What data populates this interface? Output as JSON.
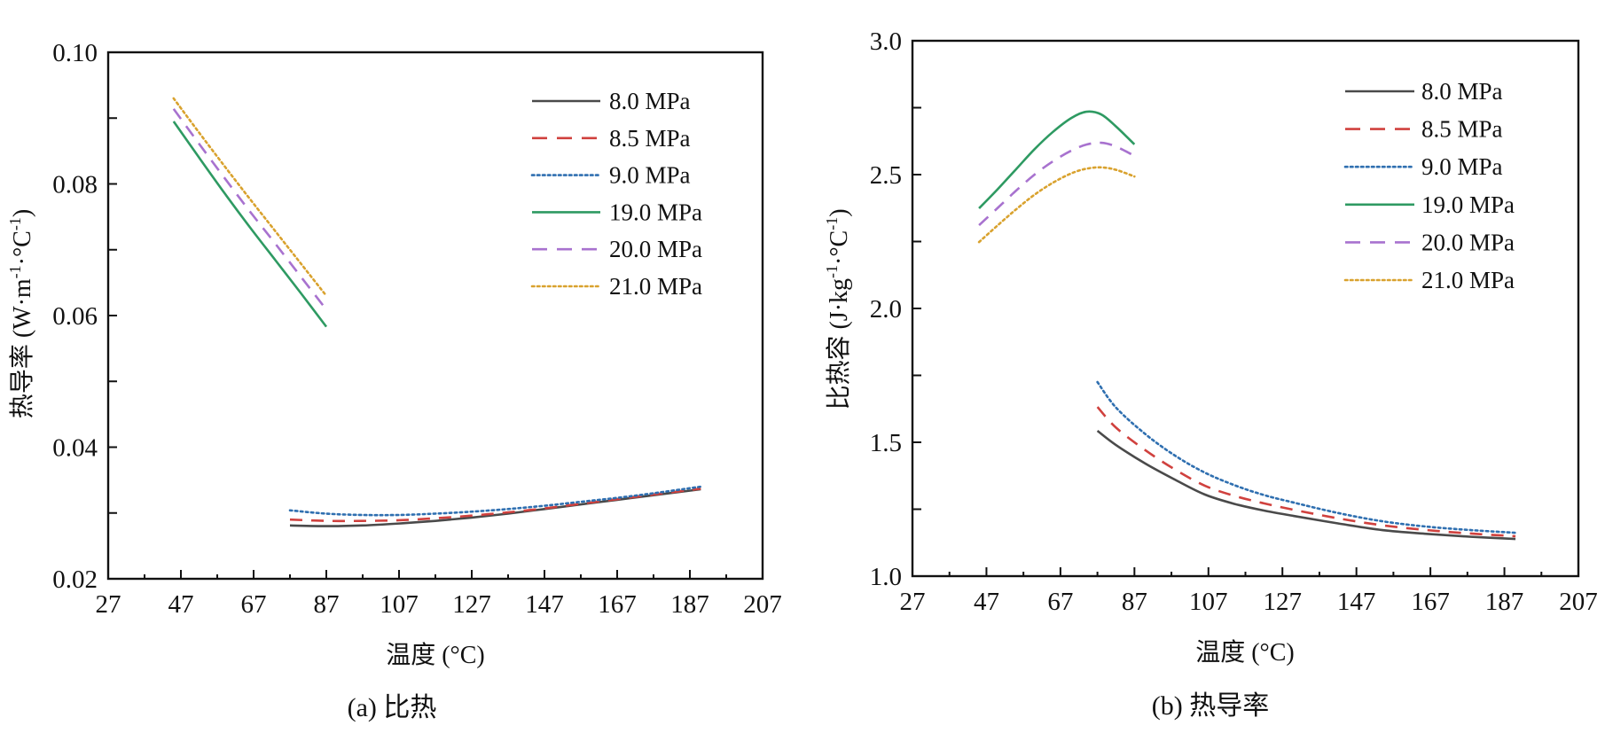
{
  "chart_data": [
    {
      "type": "line",
      "panel": "a",
      "caption": "(a) 比热",
      "xlabel": "温度 (°C)",
      "ylabel_main": "热导率 (W·m",
      "ylabel_parts": [
        "热导率 (W·m",
        "-1",
        "·°C",
        "-1",
        ")"
      ],
      "xlim": [
        27,
        207
      ],
      "ylim": [
        0.02,
        0.1
      ],
      "xticks": [
        27,
        47,
        67,
        87,
        107,
        127,
        147,
        167,
        187,
        207
      ],
      "xtick_labels": [
        "27",
        "47",
        "67",
        "87",
        "107",
        "127",
        "147",
        "167",
        "187",
        "207"
      ],
      "yticks": [
        0.02,
        0.04,
        0.06,
        0.08,
        0.1
      ],
      "ytick_labels": [
        "0.02",
        "0.04",
        "0.06",
        "0.08",
        "0.10"
      ],
      "grid": false,
      "legend_position": "top-right",
      "series": [
        {
          "name": "8.0 MPa",
          "color": "#4a4a4a",
          "style": "solid",
          "x": [
            77,
            87,
            97,
            107,
            117,
            127,
            137,
            147,
            157,
            167,
            177,
            190
          ],
          "y": [
            0.0281,
            0.028,
            0.0281,
            0.0284,
            0.0288,
            0.0293,
            0.0299,
            0.0306,
            0.0313,
            0.032,
            0.0327,
            0.0336
          ]
        },
        {
          "name": "8.5 MPa",
          "color": "#d0413e",
          "style": "dashed",
          "x": [
            77,
            87,
            97,
            107,
            117,
            127,
            137,
            147,
            157,
            167,
            177,
            190
          ],
          "y": [
            0.029,
            0.0288,
            0.0288,
            0.0289,
            0.0292,
            0.0296,
            0.0301,
            0.0307,
            0.0314,
            0.0321,
            0.0328,
            0.0337
          ]
        },
        {
          "name": "9.0 MPa",
          "color": "#2f6fb0",
          "style": "dotted",
          "x": [
            77,
            87,
            97,
            107,
            117,
            127,
            137,
            147,
            157,
            167,
            177,
            190
          ],
          "y": [
            0.0304,
            0.0299,
            0.0297,
            0.0297,
            0.0299,
            0.0302,
            0.0306,
            0.0311,
            0.0317,
            0.0323,
            0.033,
            0.034
          ]
        },
        {
          "name": "19.0 MPa",
          "color": "#2e9a62",
          "style": "solid",
          "x": [
            45,
            52,
            59,
            66,
            73,
            80,
            87
          ],
          "y": [
            0.0895,
            0.084,
            0.0786,
            0.0734,
            0.0684,
            0.0634,
            0.0583
          ]
        },
        {
          "name": "20.0 MPa",
          "color": "#a872cf",
          "style": "dashed",
          "x": [
            45,
            52,
            59,
            66,
            73,
            80,
            87
          ],
          "y": [
            0.0914,
            0.0861,
            0.0809,
            0.0758,
            0.0709,
            0.0659,
            0.0609
          ]
        },
        {
          "name": "21.0 MPa",
          "color": "#d9a22e",
          "style": "dotted",
          "x": [
            45,
            52,
            59,
            66,
            73,
            80,
            87
          ],
          "y": [
            0.093,
            0.0878,
            0.0827,
            0.0777,
            0.0728,
            0.0679,
            0.063
          ]
        }
      ]
    },
    {
      "type": "line",
      "panel": "b",
      "caption": "(b) 热导率",
      "xlabel": "温度 (°C)",
      "ylabel_parts": [
        "比热容 (J·kg",
        "-1",
        "·°C",
        "-1",
        ")"
      ],
      "xlim": [
        27,
        207
      ],
      "ylim": [
        1.0,
        3.0
      ],
      "xticks": [
        27,
        47,
        67,
        87,
        107,
        127,
        147,
        167,
        187,
        207
      ],
      "xtick_labels": [
        "27",
        "47",
        "67",
        "87",
        "107",
        "127",
        "147",
        "167",
        "187",
        "207"
      ],
      "yticks": [
        1.0,
        1.5,
        2.0,
        2.5,
        3.0
      ],
      "ytick_labels": [
        "1.0",
        "1.5",
        "2.0",
        "2.5",
        "3.0"
      ],
      "grid": false,
      "legend_position": "top-right",
      "series": [
        {
          "name": "8.0 MPa",
          "color": "#4a4a4a",
          "style": "solid",
          "x": [
            77,
            82,
            90,
            98,
            106,
            114,
            122,
            130,
            142,
            154,
            166,
            178,
            190
          ],
          "y": [
            1.543,
            1.49,
            1.42,
            1.36,
            1.305,
            1.27,
            1.245,
            1.225,
            1.197,
            1.172,
            1.158,
            1.147,
            1.139
          ]
        },
        {
          "name": "8.5 MPa",
          "color": "#d0413e",
          "style": "dashed",
          "x": [
            77,
            82,
            90,
            98,
            106,
            114,
            122,
            130,
            142,
            154,
            166,
            178,
            190
          ],
          "y": [
            1.632,
            1.555,
            1.47,
            1.398,
            1.338,
            1.3,
            1.272,
            1.248,
            1.216,
            1.19,
            1.172,
            1.159,
            1.149
          ]
        },
        {
          "name": "9.0 MPa",
          "color": "#2f6fb0",
          "style": "dotted",
          "x": [
            77,
            82,
            90,
            98,
            106,
            114,
            122,
            130,
            142,
            154,
            166,
            178,
            190
          ],
          "y": [
            1.725,
            1.63,
            1.53,
            1.45,
            1.387,
            1.34,
            1.303,
            1.275,
            1.236,
            1.205,
            1.185,
            1.172,
            1.162
          ]
        },
        {
          "name": "19.0 MPa",
          "color": "#2e9a62",
          "style": "solid",
          "x": [
            45,
            50,
            55,
            60,
            65,
            70,
            74,
            78,
            82,
            87
          ],
          "y": [
            2.374,
            2.445,
            2.52,
            2.595,
            2.66,
            2.712,
            2.735,
            2.725,
            2.68,
            2.613
          ]
        },
        {
          "name": "20.0 MPa",
          "color": "#a872cf",
          "style": "dashed",
          "x": [
            45,
            50,
            55,
            60,
            65,
            70,
            74,
            78,
            82,
            87
          ],
          "y": [
            2.311,
            2.375,
            2.44,
            2.5,
            2.55,
            2.59,
            2.612,
            2.619,
            2.605,
            2.57
          ]
        },
        {
          "name": "21.0 MPa",
          "color": "#d9a22e",
          "style": "dotted",
          "x": [
            45,
            50,
            55,
            60,
            65,
            70,
            74,
            78,
            82,
            87
          ],
          "y": [
            2.248,
            2.31,
            2.37,
            2.425,
            2.47,
            2.505,
            2.522,
            2.527,
            2.518,
            2.493
          ]
        }
      ]
    }
  ]
}
